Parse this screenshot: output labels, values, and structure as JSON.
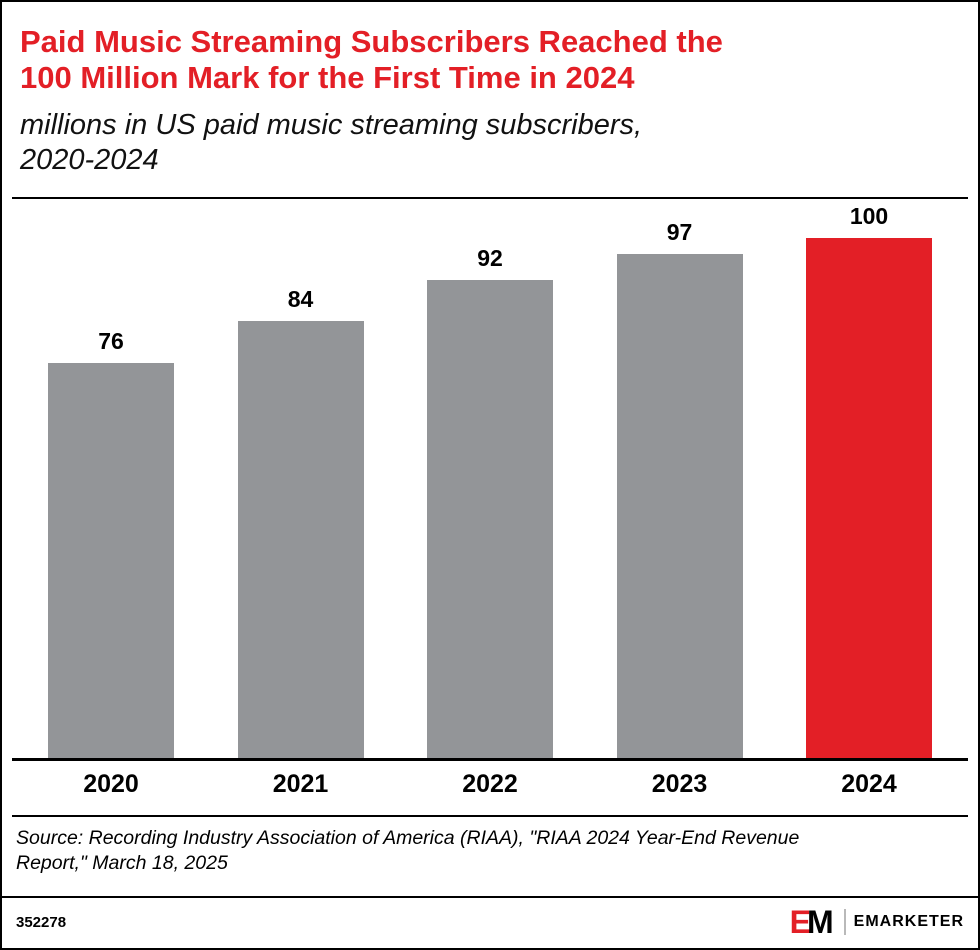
{
  "header": {
    "title": "Paid Music Streaming Subscribers Reached the\n100 Million Mark for the First Time in 2024",
    "subtitle": "millions in US paid music streaming subscribers,\n2020-2024"
  },
  "chart_data": {
    "type": "bar",
    "categories": [
      "2020",
      "2021",
      "2022",
      "2023",
      "2024"
    ],
    "values": [
      76,
      84,
      92,
      97,
      100
    ],
    "series": [
      {
        "name": "US paid music streaming subscribers (millions)",
        "values": [
          76,
          84,
          92,
          97,
          100
        ]
      }
    ],
    "title": "Paid Music Streaming Subscribers Reached the 100 Million Mark for the First Time in 2024",
    "xlabel": "",
    "ylabel": "millions in US paid music streaming subscribers",
    "ylim": [
      0,
      100
    ],
    "grid": false,
    "legend": false,
    "bar_colors": [
      "#939598",
      "#939598",
      "#939598",
      "#939598",
      "#e31f26"
    ],
    "value_labels": [
      "76",
      "84",
      "92",
      "97",
      "100"
    ]
  },
  "source": {
    "text": "Source: Recording Industry Association of America (RIAA), \"RIAA 2024 Year-End Revenue\nReport,\" March 18, 2025"
  },
  "footer": {
    "chart_id": "352278",
    "logo_e": "E",
    "logo_m": "M",
    "brand": "EMARKETER"
  },
  "colors": {
    "accent_red": "#e31f26",
    "bar_gray": "#939598",
    "text_black": "#000000"
  }
}
